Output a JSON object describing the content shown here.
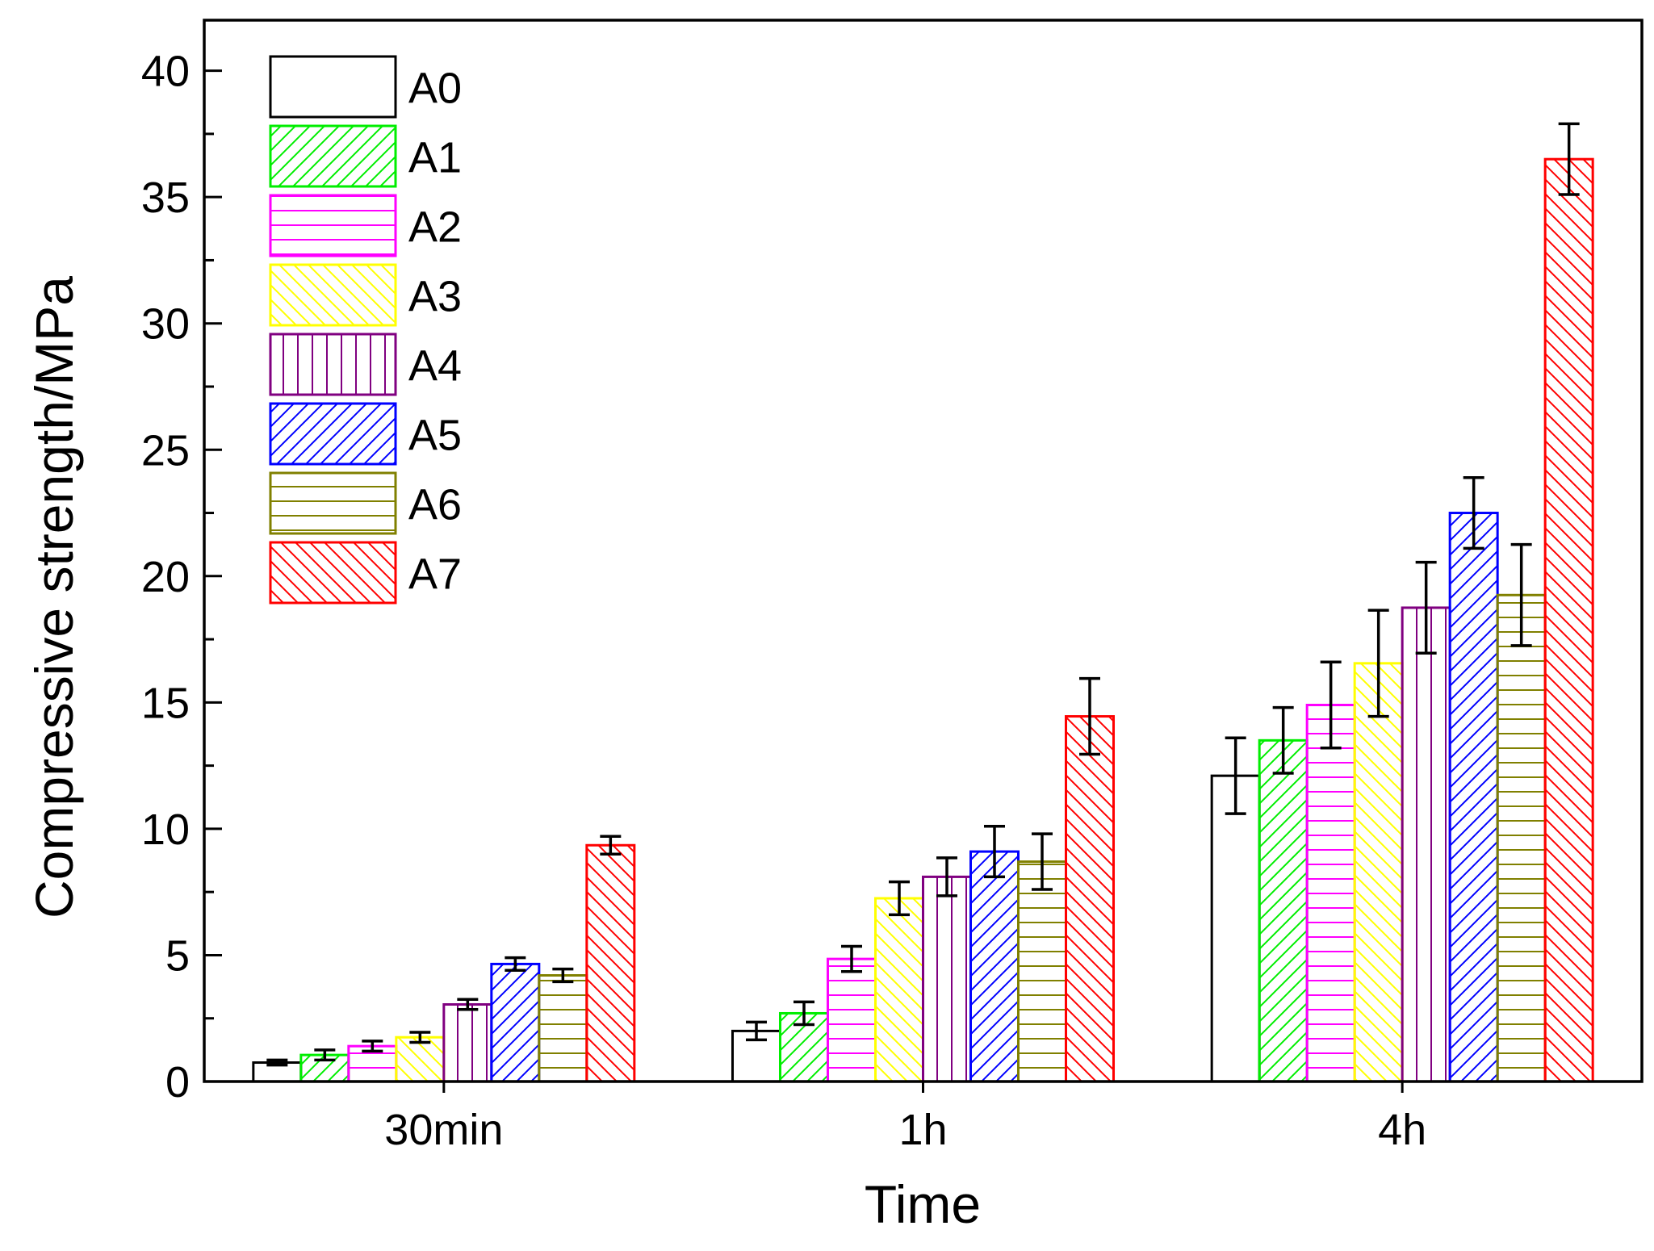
{
  "chart_data": {
    "type": "bar",
    "title": "",
    "xlabel": "Time",
    "ylabel": "Compressive strength/MPa",
    "ylim": [
      0,
      42
    ],
    "yticks": [
      0,
      5,
      10,
      15,
      20,
      25,
      30,
      35,
      40
    ],
    "categories": [
      "30min",
      "1h",
      "4h"
    ],
    "legend_position": "top-left",
    "grid": false,
    "series": [
      {
        "name": "A0",
        "color": "#000000",
        "pattern": "none",
        "values": [
          0.75,
          2.0,
          12.1
        ],
        "errors": [
          0.1,
          0.35,
          1.5
        ]
      },
      {
        "name": "A1",
        "color": "#00ee00",
        "pattern": "diag-up",
        "values": [
          1.05,
          2.7,
          13.5
        ],
        "errors": [
          0.2,
          0.45,
          1.3
        ]
      },
      {
        "name": "A2",
        "color": "#ff00ff",
        "pattern": "horizontal",
        "values": [
          1.4,
          4.85,
          14.9
        ],
        "errors": [
          0.2,
          0.5,
          1.7
        ]
      },
      {
        "name": "A3",
        "color": "#ffff00",
        "pattern": "diag-down",
        "values": [
          1.75,
          7.25,
          16.55
        ],
        "errors": [
          0.2,
          0.65,
          2.1
        ]
      },
      {
        "name": "A4",
        "color": "#800080",
        "pattern": "vertical",
        "values": [
          3.05,
          8.1,
          18.75
        ],
        "errors": [
          0.2,
          0.75,
          1.8
        ]
      },
      {
        "name": "A5",
        "color": "#0000ff",
        "pattern": "diag-up",
        "values": [
          4.65,
          9.1,
          22.5
        ],
        "errors": [
          0.25,
          1.0,
          1.4
        ]
      },
      {
        "name": "A6",
        "color": "#808000",
        "pattern": "horizontal",
        "values": [
          4.2,
          8.7,
          19.25
        ],
        "errors": [
          0.25,
          1.1,
          2.0
        ]
      },
      {
        "name": "A7",
        "color": "#ff0000",
        "pattern": "diag-down",
        "values": [
          9.35,
          14.45,
          36.5
        ],
        "errors": [
          0.35,
          1.5,
          1.4
        ]
      }
    ]
  }
}
